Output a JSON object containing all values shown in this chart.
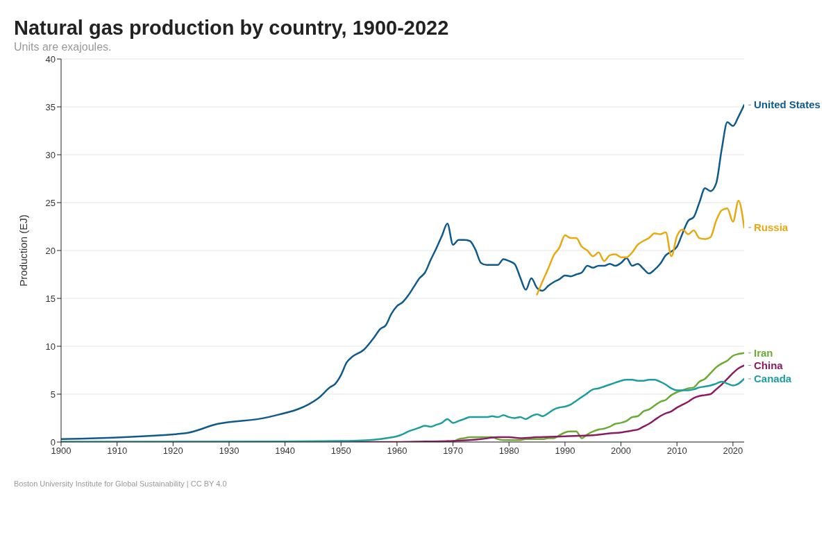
{
  "chart_data": {
    "type": "line",
    "title": "Natural gas production by country, 1900-2022",
    "subtitle": "Units are exajoules.",
    "ylabel": "Production (EJ)",
    "annotations": [
      "Boston University Institute for Global Sustainability | CC BY 4.0"
    ],
    "xlim": [
      1900,
      2022
    ],
    "xticks": [
      1900,
      1910,
      1920,
      1930,
      1940,
      1950,
      1960,
      1970,
      1980,
      1990,
      2000,
      2010,
      2020
    ],
    "ylim": [
      0,
      40
    ],
    "yticks": [
      0,
      5,
      10,
      15,
      20,
      25,
      30,
      35,
      40
    ],
    "grid": "y",
    "marker": "none",
    "line_style": "solid",
    "series": [
      {
        "name": "United States",
        "color": "#0f5a8c",
        "x": [
          1900,
          1922,
          1928,
          1937,
          1946,
          1948,
          1949,
          1950,
          1951,
          1952,
          1954,
          1956,
          1957,
          1958,
          1959,
          1960,
          1961,
          1962,
          1963,
          1964,
          1965,
          1966,
          1967,
          1968,
          1969,
          1970,
          1971,
          1972,
          1973,
          1974,
          1975,
          1976,
          1977,
          1978,
          1979,
          1980,
          1981,
          1982,
          1983,
          1984,
          1985,
          1986,
          1987,
          1988,
          1989,
          1990,
          1991,
          1992,
          1993,
          1994,
          1995,
          1996,
          1997,
          1998,
          1999,
          2000,
          2001,
          2002,
          2003,
          2004,
          2005,
          2006,
          2007,
          2008,
          2009,
          2010,
          2011,
          2012,
          2013,
          2014,
          2015,
          2016,
          2017,
          2018,
          2019,
          2020,
          2021,
          2022
        ],
        "values": [
          0.3,
          0.9,
          1.9,
          2.6,
          4.6,
          5.7,
          6.1,
          7.0,
          8.3,
          8.9,
          9.6,
          11.0,
          11.8,
          12.2,
          13.4,
          14.2,
          14.6,
          15.3,
          16.2,
          17.1,
          17.7,
          19.0,
          20.2,
          21.5,
          22.8,
          20.6,
          21.1,
          21.1,
          21.0,
          20.1,
          18.7,
          18.5,
          18.5,
          18.5,
          19.1,
          18.9,
          18.6,
          17.2,
          15.9,
          17.1,
          16.1,
          15.8,
          16.3,
          16.7,
          17.0,
          17.4,
          17.3,
          17.5,
          17.7,
          18.4,
          18.2,
          18.4,
          18.4,
          18.6,
          18.4,
          18.7,
          19.2,
          18.4,
          18.6,
          18.1,
          17.6,
          18.0,
          18.6,
          19.5,
          19.9,
          20.4,
          21.8,
          23.1,
          23.5,
          25.0,
          26.5,
          26.2,
          27.0,
          30.6,
          33.4,
          33.0,
          34.0,
          35.2
        ]
      },
      {
        "name": "Russia",
        "color": "#e9a90e",
        "x": [
          1985,
          1986,
          1987,
          1988,
          1989,
          1990,
          1991,
          1992,
          1993,
          1994,
          1995,
          1996,
          1997,
          1998,
          1999,
          2000,
          2001,
          2002,
          2003,
          2004,
          2005,
          2006,
          2007,
          2008,
          2009,
          2010,
          2011,
          2012,
          2013,
          2014,
          2015,
          2016,
          2017,
          2018,
          2019,
          2020,
          2021,
          2022
        ],
        "values": [
          15.4,
          16.8,
          18.1,
          19.5,
          20.3,
          21.6,
          21.3,
          21.3,
          20.4,
          20.0,
          19.4,
          19.8,
          18.9,
          19.5,
          19.6,
          19.3,
          19.3,
          19.8,
          20.6,
          21.0,
          21.3,
          21.8,
          21.7,
          21.9,
          19.4,
          21.5,
          22.2,
          21.7,
          22.1,
          21.3,
          21.2,
          21.4,
          23.1,
          24.2,
          24.4,
          23.0,
          25.2,
          22.4
        ]
      },
      {
        "name": "Iran",
        "color": "#6aaa35",
        "x": [
          1969,
          1970,
          1971,
          1972,
          1973,
          1974,
          1975,
          1976,
          1977,
          1978,
          1979,
          1980,
          1981,
          1982,
          1983,
          1984,
          1985,
          1986,
          1987,
          1988,
          1989,
          1990,
          1991,
          1992,
          1993,
          1994,
          1995,
          1996,
          1997,
          1998,
          1999,
          2000,
          2001,
          2002,
          2003,
          2004,
          2005,
          2006,
          2007,
          2008,
          2009,
          2010,
          2011,
          2012,
          2013,
          2014,
          2015,
          2016,
          2017,
          2018,
          2019,
          2020,
          2021,
          2022
        ],
        "values": [
          0.1,
          0.05,
          0.3,
          0.4,
          0.5,
          0.5,
          0.5,
          0.5,
          0.5,
          0.3,
          0.2,
          0.2,
          0.2,
          0.2,
          0.3,
          0.3,
          0.3,
          0.3,
          0.4,
          0.4,
          0.7,
          1.0,
          1.1,
          1.1,
          0.4,
          0.8,
          1.1,
          1.3,
          1.4,
          1.6,
          1.9,
          2.0,
          2.2,
          2.6,
          2.7,
          3.2,
          3.4,
          3.8,
          4.2,
          4.4,
          4.9,
          5.2,
          5.4,
          5.6,
          5.7,
          6.3,
          6.6,
          7.2,
          7.8,
          8.2,
          8.5,
          9.0,
          9.2,
          9.3
        ]
      },
      {
        "name": "China",
        "color": "#8b1a5e",
        "x": [
          1900,
          1960,
          1965,
          1970,
          1975,
          1978,
          1980,
          1982,
          1985,
          1990,
          1995,
          1998,
          2000,
          2002,
          2003,
          2004,
          2005,
          2006,
          2007,
          2008,
          2009,
          2010,
          2011,
          2012,
          2013,
          2014,
          2015,
          2016,
          2017,
          2018,
          2019,
          2020,
          2021,
          2022
        ],
        "values": [
          0,
          0,
          0.05,
          0.1,
          0.3,
          0.5,
          0.5,
          0.4,
          0.5,
          0.6,
          0.7,
          0.9,
          1.0,
          1.2,
          1.3,
          1.6,
          1.9,
          2.3,
          2.7,
          3.0,
          3.2,
          3.6,
          3.9,
          4.2,
          4.6,
          4.8,
          4.9,
          5.0,
          5.5,
          6.0,
          6.6,
          7.2,
          7.7,
          8.0
        ]
      },
      {
        "name": "Canada",
        "color": "#1c9e9e",
        "x": [
          1900,
          1940,
          1950,
          1955,
          1957,
          1958,
          1960,
          1961,
          1962,
          1963,
          1964,
          1965,
          1966,
          1967,
          1968,
          1969,
          1970,
          1971,
          1972,
          1973,
          1974,
          1975,
          1976,
          1977,
          1978,
          1979,
          1980,
          1981,
          1982,
          1983,
          1984,
          1985,
          1986,
          1987,
          1988,
          1989,
          1990,
          1991,
          1992,
          1993,
          1994,
          1995,
          1996,
          1997,
          1998,
          1999,
          2000,
          2001,
          2002,
          2003,
          2004,
          2005,
          2006,
          2007,
          2008,
          2009,
          2010,
          2011,
          2012,
          2013,
          2014,
          2015,
          2016,
          2017,
          2018,
          2019,
          2020,
          2021,
          2022
        ],
        "values": [
          0.01,
          0.05,
          0.1,
          0.2,
          0.3,
          0.4,
          0.6,
          0.8,
          1.1,
          1.3,
          1.5,
          1.7,
          1.6,
          1.8,
          2.0,
          2.4,
          2.0,
          2.2,
          2.4,
          2.6,
          2.6,
          2.6,
          2.6,
          2.7,
          2.6,
          2.8,
          2.6,
          2.5,
          2.6,
          2.4,
          2.7,
          2.9,
          2.7,
          3.0,
          3.4,
          3.6,
          3.7,
          3.9,
          4.3,
          4.7,
          5.1,
          5.5,
          5.6,
          5.8,
          6.0,
          6.2,
          6.4,
          6.5,
          6.5,
          6.4,
          6.4,
          6.5,
          6.5,
          6.3,
          6.0,
          5.6,
          5.4,
          5.4,
          5.4,
          5.5,
          5.7,
          5.8,
          5.9,
          6.1,
          6.3,
          6.1,
          5.9,
          6.1,
          6.6
        ]
      }
    ]
  }
}
